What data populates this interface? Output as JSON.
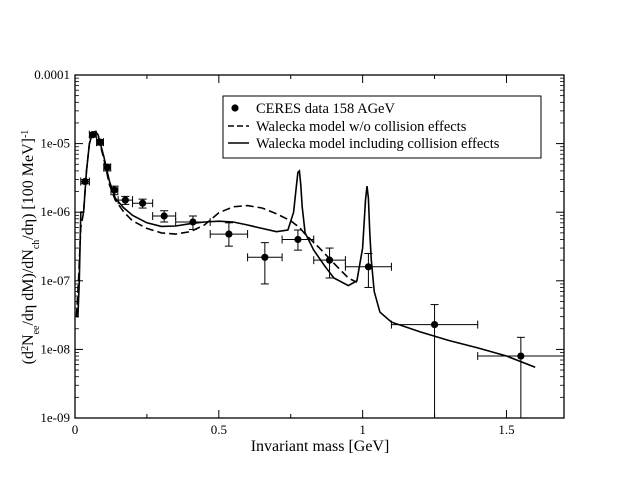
{
  "chart_data": {
    "type": "line",
    "title": "",
    "xlabel": "Invariant mass [GeV]",
    "ylabel": "(d²N_ee/dη dM)/(dN_ch/dη) [100 MeV]⁻¹",
    "ylabel_parts": {
      "p1": "(d",
      "p2": "2",
      "p3": "N",
      "p4": "ee",
      "p5": "/dη  dM)/dN",
      "p6": "ch",
      "p7": "/dη) [100 MeV]",
      "p8": "-1"
    },
    "xlim": [
      0,
      1.7
    ],
    "ylim": [
      1e-09,
      0.0001
    ],
    "yscale": "log",
    "xticks": [
      {
        "v": 0,
        "label": "0"
      },
      {
        "v": 0.5,
        "label": "0.5"
      },
      {
        "v": 1,
        "label": "1"
      },
      {
        "v": 1.5,
        "label": "1.5"
      }
    ],
    "yticks": [
      {
        "v": 1e-09,
        "label": "1e-09"
      },
      {
        "v": 1e-08,
        "label": "1e-08"
      },
      {
        "v": 1e-07,
        "label": "1e-07"
      },
      {
        "v": 1e-06,
        "label": "1e-06"
      },
      {
        "v": 1e-05,
        "label": "1e-05"
      },
      {
        "v": 0.0001,
        "label": "0.0001"
      }
    ],
    "legend_position": "top-right",
    "series": [
      {
        "name": "CERES data 158 AGeV",
        "style": "points",
        "points": [
          {
            "x": 0.035,
            "y": 2.8e-06,
            "xerr": 0.015,
            "ylo": 2.6e-06,
            "yhi": 3e-06
          },
          {
            "x": 0.062,
            "y": 1.35e-05,
            "xerr": 0.012,
            "ylo": 1.25e-05,
            "yhi": 1.45e-05
          },
          {
            "x": 0.087,
            "y": 1.05e-05,
            "xerr": 0.012,
            "ylo": 9.5e-06,
            "yhi": 1.15e-05
          },
          {
            "x": 0.112,
            "y": 4.5e-06,
            "xerr": 0.012,
            "ylo": 4e-06,
            "yhi": 5e-06
          },
          {
            "x": 0.137,
            "y": 2.1e-06,
            "xerr": 0.012,
            "ylo": 1.8e-06,
            "yhi": 2.4e-06
          },
          {
            "x": 0.175,
            "y": 1.5e-06,
            "xerr": 0.025,
            "ylo": 1.3e-06,
            "yhi": 1.7e-06
          },
          {
            "x": 0.235,
            "y": 1.35e-06,
            "xerr": 0.035,
            "ylo": 1.15e-06,
            "yhi": 1.55e-06
          },
          {
            "x": 0.31,
            "y": 8.8e-07,
            "xerr": 0.04,
            "ylo": 7.2e-07,
            "yhi": 1.05e-06
          },
          {
            "x": 0.41,
            "y": 7.2e-07,
            "xerr": 0.06,
            "ylo": 5.6e-07,
            "yhi": 8.8e-07
          },
          {
            "x": 0.535,
            "y": 4.8e-07,
            "xerr": 0.065,
            "ylo": 3.2e-07,
            "yhi": 7e-07
          },
          {
            "x": 0.66,
            "y": 2.2e-07,
            "xerr": 0.06,
            "ylo": 9e-08,
            "yhi": 3.6e-07
          },
          {
            "x": 0.775,
            "y": 4e-07,
            "xerr": 0.055,
            "ylo": 2.8e-07,
            "yhi": 5.5e-07
          },
          {
            "x": 0.885,
            "y": 2e-07,
            "xerr": 0.055,
            "ylo": 1.1e-07,
            "yhi": 3e-07
          },
          {
            "x": 1.02,
            "y": 1.6e-07,
            "xerr": 0.08,
            "ylo": 8e-08,
            "yhi": 2.5e-07
          },
          {
            "x": 1.25,
            "y": 2.3e-08,
            "xerr": 0.15,
            "ylo": 1e-09,
            "yhi": 4.5e-08
          },
          {
            "x": 1.55,
            "y": 8e-09,
            "xerr": 0.15,
            "ylo": 1e-09,
            "yhi": 1.5e-08
          }
        ]
      },
      {
        "name": "Walecka model w/o collision effects",
        "style": "dashed",
        "x": [
          0.005,
          0.012,
          0.02,
          0.03,
          0.04,
          0.05,
          0.06,
          0.07,
          0.08,
          0.1,
          0.12,
          0.14,
          0.17,
          0.2,
          0.25,
          0.3,
          0.35,
          0.4,
          0.45,
          0.5,
          0.55,
          0.6,
          0.65,
          0.7,
          0.75,
          0.78,
          0.8,
          0.85,
          0.9,
          0.95,
          0.98
        ],
        "y": [
          3e-08,
          1e-07,
          6e-07,
          1e-06,
          4e-06,
          1e-05,
          1.35e-05,
          1.45e-05,
          1.3e-05,
          6e-06,
          2.5e-06,
          1.5e-06,
          1e-06,
          7.5e-07,
          5.8e-07,
          5e-07,
          4.8e-07,
          5.2e-07,
          6.5e-07,
          9.8e-07,
          1.2e-06,
          1.25e-06,
          1.15e-06,
          9.5e-07,
          7.5e-07,
          6e-07,
          4.8e-07,
          3e-07,
          1.8e-07,
          1.1e-07,
          9.5e-08
        ]
      },
      {
        "name": "Walecka model including collision effects",
        "style": "solid",
        "x": [
          0.005,
          0.01,
          0.015,
          0.02,
          0.025,
          0.03,
          0.04,
          0.05,
          0.06,
          0.07,
          0.08,
          0.1,
          0.12,
          0.14,
          0.17,
          0.2,
          0.25,
          0.3,
          0.35,
          0.4,
          0.45,
          0.5,
          0.55,
          0.6,
          0.65,
          0.7,
          0.74,
          0.76,
          0.77,
          0.775,
          0.78,
          0.785,
          0.79,
          0.8,
          0.83,
          0.87,
          0.9,
          0.95,
          0.98,
          1.0,
          1.01,
          1.015,
          1.02,
          1.025,
          1.03,
          1.04,
          1.06,
          1.1,
          1.2,
          1.3,
          1.4,
          1.5,
          1.6
        ],
        "y": [
          3e-08,
          3e-08,
          1e-07,
          1e-06,
          1e-06,
          1e-06,
          4e-06,
          1e-05,
          1.4e-05,
          1.5e-05,
          1.35e-05,
          6.5e-06,
          2.8e-06,
          1.6e-06,
          1.15e-06,
          9e-07,
          7e-07,
          6.2e-07,
          6.3e-07,
          6.8e-07,
          7.2e-07,
          7.4e-07,
          7.2e-07,
          6.5e-07,
          5.8e-07,
          5.2e-07,
          5.5e-07,
          1e-06,
          2.5e-06,
          3.8e-06,
          4e-06,
          2.5e-06,
          1.2e-06,
          5e-07,
          2.8e-07,
          1.6e-07,
          1.1e-07,
          8.5e-08,
          1e-07,
          3e-07,
          1.5e-06,
          2.4e-06,
          1.6e-06,
          5e-07,
          2e-07,
          7e-08,
          3.5e-08,
          2.5e-08,
          1.8e-08,
          1.35e-08,
          1.05e-08,
          8e-09,
          5.5e-09
        ]
      }
    ]
  }
}
